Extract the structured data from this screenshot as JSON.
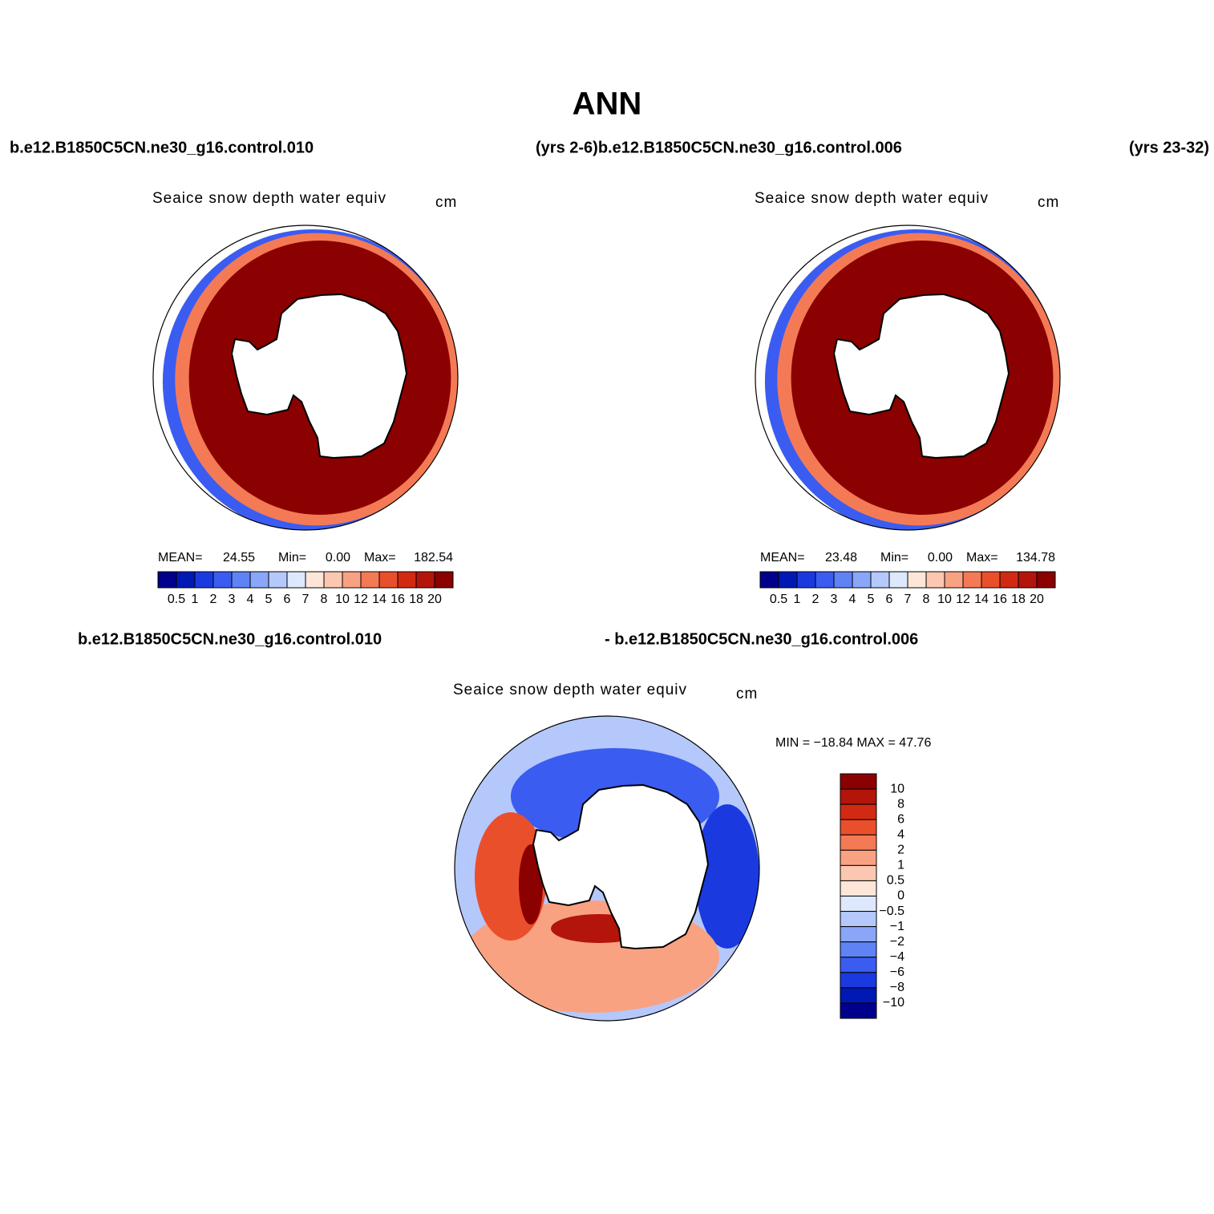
{
  "title": "ANN",
  "header": {
    "left": "b.e12.B1850C5CN.ne30_g16.control.010",
    "center": "(yrs 2-6)b.e12.B1850C5CN.ne30_g16.control.006",
    "right": "(yrs 23-32)"
  },
  "panels": [
    {
      "title": "Seaice snow depth water equiv",
      "units": "cm",
      "stats": [
        "MEAN=",
        "24.55",
        "Min=",
        "0.00",
        "Max=",
        "182.54"
      ],
      "colorbar": {
        "labels": [
          "0.5",
          "1",
          "2",
          "3",
          "4",
          "5",
          "6",
          "7",
          "8",
          "10",
          "12",
          "14",
          "16",
          "18",
          "20"
        ],
        "colors": [
          "#00008b",
          "#0018b4",
          "#1a3ae0",
          "#3b5cf0",
          "#5f82f5",
          "#8aa6f8",
          "#b5c8fb",
          "#dde8fd",
          "#fde6d8",
          "#fcc7b0",
          "#f9a282",
          "#f47a56",
          "#ea4f2c",
          "#d22a12",
          "#b3150a",
          "#8b0000"
        ]
      }
    },
    {
      "title": "Seaice snow depth water equiv",
      "units": "cm",
      "stats": [
        "MEAN=",
        "23.48",
        "Min=",
        "0.00",
        "Max=",
        "134.78"
      ],
      "colorbar": {
        "labels": [
          "0.5",
          "1",
          "2",
          "3",
          "4",
          "5",
          "6",
          "7",
          "8",
          "10",
          "12",
          "14",
          "16",
          "18",
          "20"
        ],
        "colors": [
          "#00008b",
          "#0018b4",
          "#1a3ae0",
          "#3b5cf0",
          "#5f82f5",
          "#8aa6f8",
          "#b5c8fb",
          "#dde8fd",
          "#fde6d8",
          "#fcc7b0",
          "#f9a282",
          "#f47a56",
          "#ea4f2c",
          "#d22a12",
          "#b3150a",
          "#8b0000"
        ]
      }
    }
  ],
  "difference": {
    "header": {
      "left": "b.e12.B1850C5CN.ne30_g16.control.010",
      "right": "- b.e12.B1850C5CN.ne30_g16.control.006"
    },
    "title": "Seaice snow depth water equiv",
    "units": "cm",
    "stats": "MIN = −18.84 MAX =  47.76",
    "colorbar": {
      "labels": [
        "10",
        "8",
        "6",
        "4",
        "2",
        "1",
        "0.5",
        "0",
        "−0.5",
        "−1",
        "−2",
        "−4",
        "−6",
        "−8",
        "−10"
      ],
      "colors": [
        "#8b0000",
        "#b3150a",
        "#d22a12",
        "#ea4f2c",
        "#f47a56",
        "#f9a282",
        "#fcc7b0",
        "#fde6d8",
        "#dde8fd",
        "#b5c8fb",
        "#8aa6f8",
        "#5f82f5",
        "#3b5cf0",
        "#1a3ae0",
        "#0018b4",
        "#00008b"
      ]
    }
  }
}
